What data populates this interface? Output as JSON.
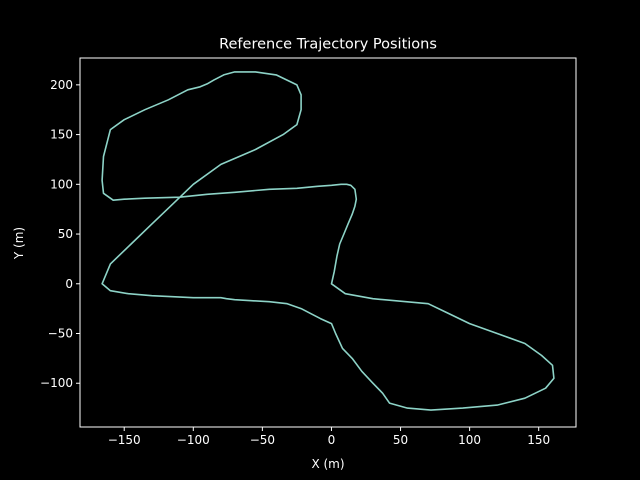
{
  "chart_data": {
    "type": "line",
    "title": "Reference Trajectory Positions",
    "xlabel": "X (m)",
    "ylabel": "Y (m)",
    "xlim": [
      -182,
      177
    ],
    "ylim": [
      -144,
      227
    ],
    "xticks": [
      -150,
      -100,
      -50,
      0,
      50,
      100,
      150
    ],
    "yticks": [
      -100,
      -50,
      0,
      50,
      100,
      150,
      200
    ],
    "xtick_labels": [
      "−150",
      "−100",
      "−50",
      "0",
      "50",
      "100",
      "150"
    ],
    "ytick_labels": [
      "−100",
      "−50",
      "0",
      "50",
      "100",
      "150",
      "200"
    ],
    "grid": false,
    "legend": false,
    "colors": {
      "background": "#000000",
      "axes": "#ffffff",
      "line": "#8dd3c7"
    },
    "series": [
      {
        "x": [
          0,
          2,
          4,
          6,
          9,
          12,
          15,
          17,
          18,
          17,
          14,
          11,
          7,
          0,
          -10,
          -25,
          -45,
          -70,
          -90,
          -110,
          -135,
          -150,
          -158,
          -165,
          -166,
          -165,
          -160,
          -150,
          -135,
          -118,
          -104,
          -95,
          -90,
          -85,
          -78,
          -70,
          -55,
          -40,
          -25,
          -22,
          -22,
          -25,
          -35,
          -55,
          -80,
          -100,
          -115,
          -130,
          -145,
          -160,
          -166,
          -160,
          -147,
          -130,
          -115,
          -100,
          -80,
          -76,
          -70,
          -58,
          -45,
          -32,
          -22,
          -15,
          -8,
          0,
          3,
          8,
          15,
          22,
          30,
          37,
          42,
          55,
          72,
          95,
          120,
          140,
          155,
          161,
          160,
          152,
          140,
          120,
          100,
          85,
          70,
          30,
          10,
          0
        ],
        "y": [
          0,
          12,
          28,
          40,
          50,
          60,
          70,
          78,
          85,
          95,
          99,
          100,
          100,
          99,
          98,
          96,
          95,
          92,
          90,
          87,
          86,
          85,
          84,
          91,
          104,
          128,
          155,
          165,
          175,
          185,
          195,
          198,
          201,
          205,
          210,
          213,
          213,
          210,
          200,
          190,
          175,
          160,
          150,
          135,
          120,
          100,
          80,
          60,
          40,
          20,
          0,
          -7,
          -10,
          -12,
          -13,
          -14,
          -14,
          -15,
          -16,
          -17,
          -18,
          -20,
          -25,
          -30,
          -35,
          -40,
          -50,
          -65,
          -75,
          -88,
          -100,
          -110,
          -120,
          -125,
          -127,
          -125,
          -122,
          -115,
          -105,
          -95,
          -82,
          -72,
          -60,
          -50,
          -40,
          -30,
          -20,
          -15,
          -10,
          0
        ]
      }
    ]
  }
}
